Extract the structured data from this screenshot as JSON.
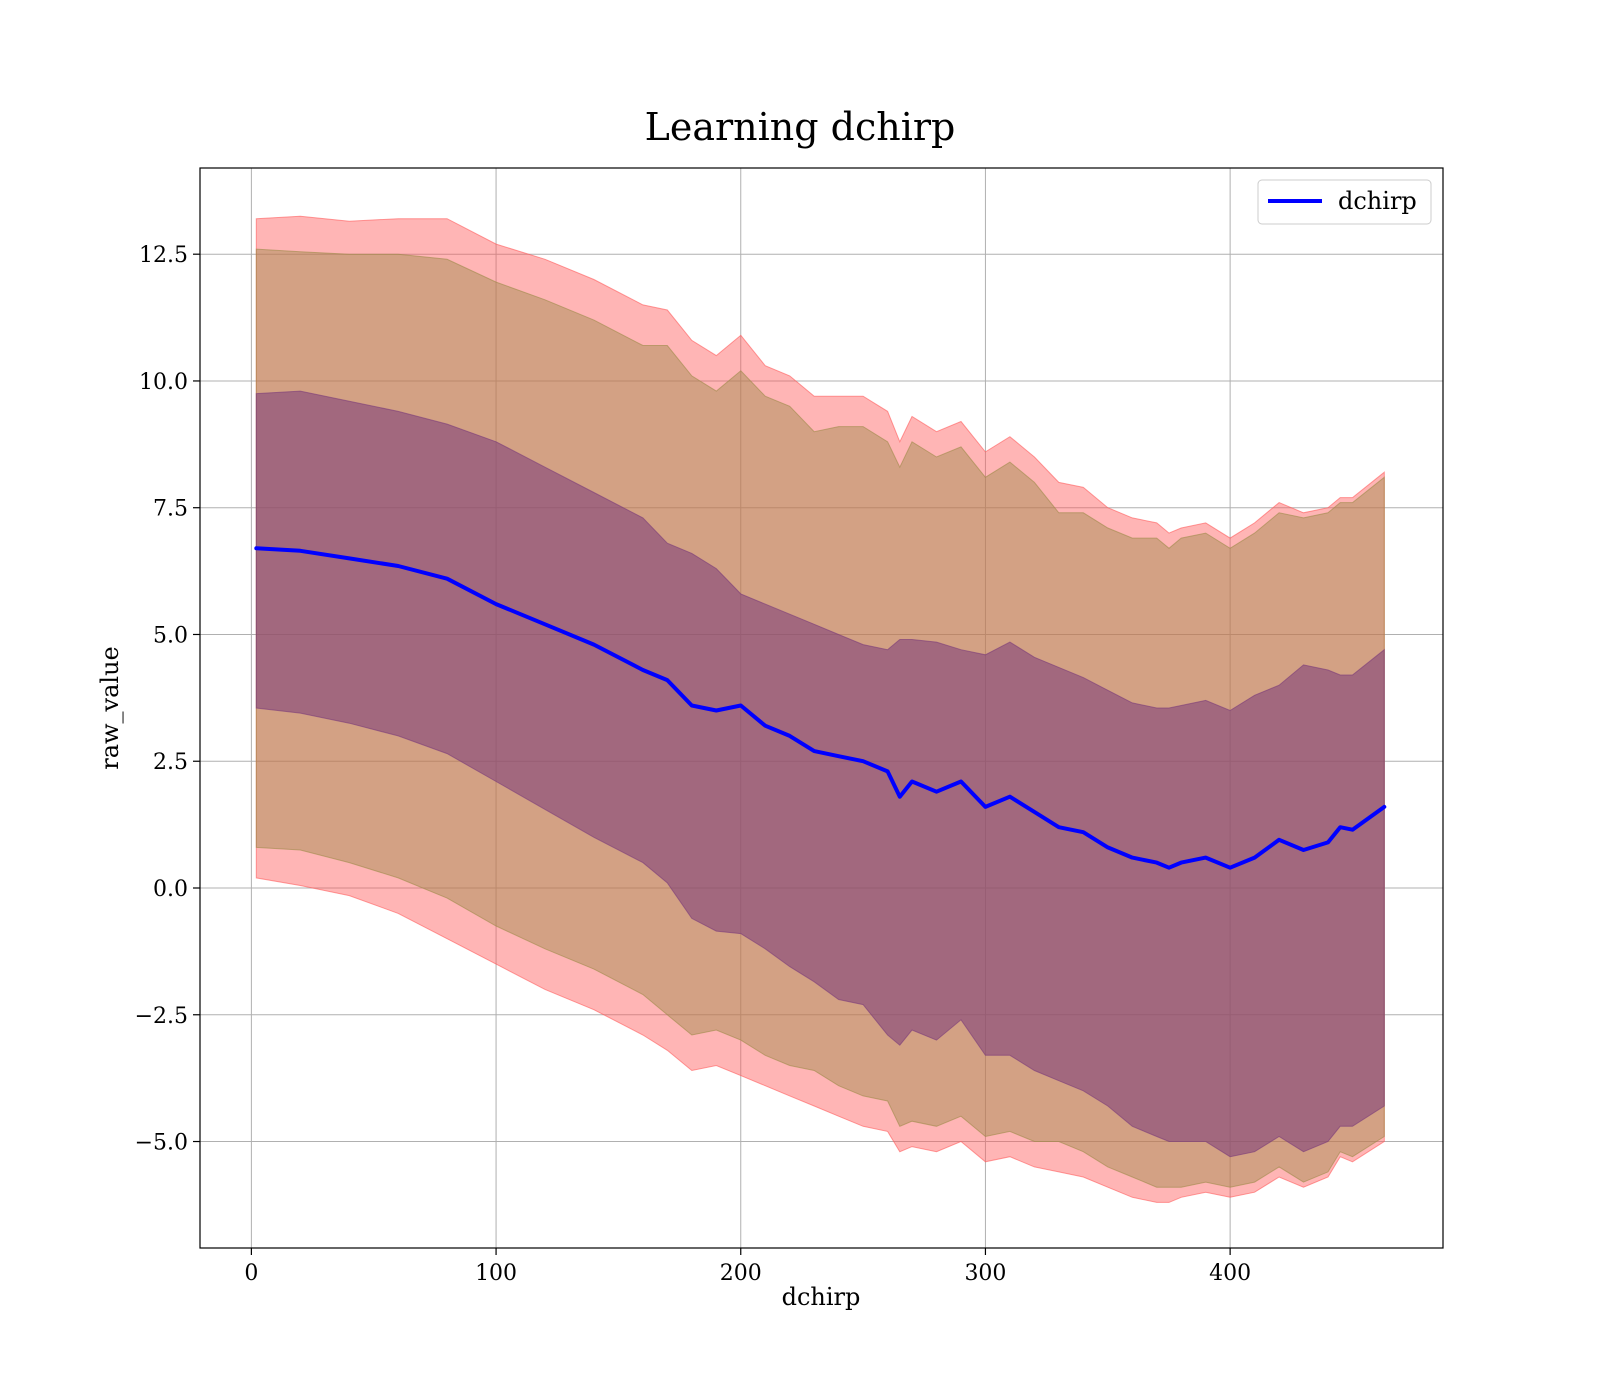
{
  "chart_data": {
    "type": "line",
    "title": "Learning dchirp",
    "xlabel": "dchirp",
    "ylabel": "raw_value",
    "xlim": [
      -21,
      487
    ],
    "ylim": [
      -7.1,
      14.2
    ],
    "xticks": [
      0,
      100,
      200,
      300,
      400
    ],
    "xtick_labels": [
      "0",
      "100",
      "200",
      "300",
      "400"
    ],
    "yticks": [
      -5.0,
      -2.5,
      0.0,
      2.5,
      5.0,
      7.5,
      10.0,
      12.5
    ],
    "ytick_labels": [
      "−5.0",
      "−2.5",
      "0.0",
      "2.5",
      "5.0",
      "7.5",
      "10.0",
      "12.5"
    ],
    "grid": true,
    "legend": {
      "position": "top-right",
      "entries": [
        "dchirp"
      ]
    },
    "colors": {
      "mean_line": "#0000ff",
      "band_outer": "#ff5a5a",
      "band_mid": "#9e8a4a",
      "band_inner": "#7a3a7a"
    },
    "x": [
      2,
      20,
      40,
      60,
      80,
      100,
      120,
      140,
      160,
      170,
      180,
      190,
      200,
      210,
      220,
      230,
      240,
      250,
      260,
      265,
      270,
      280,
      290,
      300,
      310,
      320,
      330,
      340,
      350,
      360,
      370,
      375,
      380,
      390,
      400,
      410,
      420,
      430,
      440,
      445,
      450,
      463
    ],
    "series": [
      {
        "name": "dchirp",
        "values": [
          6.7,
          6.65,
          6.5,
          6.35,
          6.1,
          5.6,
          5.2,
          4.8,
          4.3,
          4.1,
          3.6,
          3.5,
          3.6,
          3.2,
          3.0,
          2.7,
          2.6,
          2.5,
          2.3,
          1.8,
          2.1,
          1.9,
          2.1,
          1.6,
          1.8,
          1.5,
          1.2,
          1.1,
          0.8,
          0.6,
          0.5,
          0.4,
          0.5,
          0.6,
          0.4,
          0.6,
          0.95,
          0.75,
          0.9,
          1.2,
          1.15,
          1.6
        ]
      }
    ],
    "bands": [
      {
        "sigma": 1,
        "lower": [
          3.55,
          3.45,
          3.25,
          3.0,
          2.65,
          2.1,
          1.55,
          1.0,
          0.5,
          0.1,
          -0.6,
          -0.85,
          -0.9,
          -1.2,
          -1.55,
          -1.85,
          -2.2,
          -2.3,
          -2.9,
          -3.1,
          -2.8,
          -3.0,
          -2.6,
          -3.3,
          -3.3,
          -3.6,
          -3.8,
          -4.0,
          -4.3,
          -4.7,
          -4.9,
          -5.0,
          -5.0,
          -5.0,
          -5.3,
          -5.2,
          -4.9,
          -5.2,
          -5.0,
          -4.7,
          -4.7,
          -4.3
        ],
        "upper": [
          9.75,
          9.8,
          9.6,
          9.4,
          9.15,
          8.8,
          8.3,
          7.8,
          7.3,
          6.8,
          6.6,
          6.3,
          5.8,
          5.6,
          5.4,
          5.2,
          5.0,
          4.8,
          4.7,
          4.9,
          4.9,
          4.85,
          4.7,
          4.6,
          4.85,
          4.55,
          4.35,
          4.15,
          3.9,
          3.65,
          3.55,
          3.55,
          3.6,
          3.7,
          3.5,
          3.8,
          4.0,
          4.4,
          4.3,
          4.2,
          4.2,
          4.7
        ]
      },
      {
        "sigma": 2,
        "lower": [
          0.8,
          0.75,
          0.5,
          0.2,
          -0.2,
          -0.75,
          -1.2,
          -1.6,
          -2.1,
          -2.5,
          -2.9,
          -2.8,
          -3.0,
          -3.3,
          -3.5,
          -3.6,
          -3.9,
          -4.1,
          -4.2,
          -4.7,
          -4.6,
          -4.7,
          -4.5,
          -4.9,
          -4.8,
          -5.0,
          -5.0,
          -5.2,
          -5.5,
          -5.7,
          -5.9,
          -5.9,
          -5.9,
          -5.8,
          -5.9,
          -5.8,
          -5.5,
          -5.8,
          -5.6,
          -5.2,
          -5.3,
          -4.9
        ]
      },
      {
        "sigma": 3,
        "lower": [
          0.2,
          0.05,
          -0.15,
          -0.5,
          -1.0,
          -1.5,
          -2.0,
          -2.4,
          -2.9,
          -3.2,
          -3.6,
          -3.5,
          -3.7,
          -3.9,
          -4.1,
          -4.3,
          -4.5,
          -4.7,
          -4.8,
          -5.2,
          -5.1,
          -5.2,
          -5.0,
          -5.4,
          -5.3,
          -5.5,
          -5.6,
          -5.7,
          -5.9,
          -6.1,
          -6.2,
          -6.2,
          -6.1,
          -6.0,
          -6.1,
          -6.0,
          -5.7,
          -5.9,
          -5.7,
          -5.3,
          -5.4,
          -5.0
        ]
      }
    ]
  }
}
